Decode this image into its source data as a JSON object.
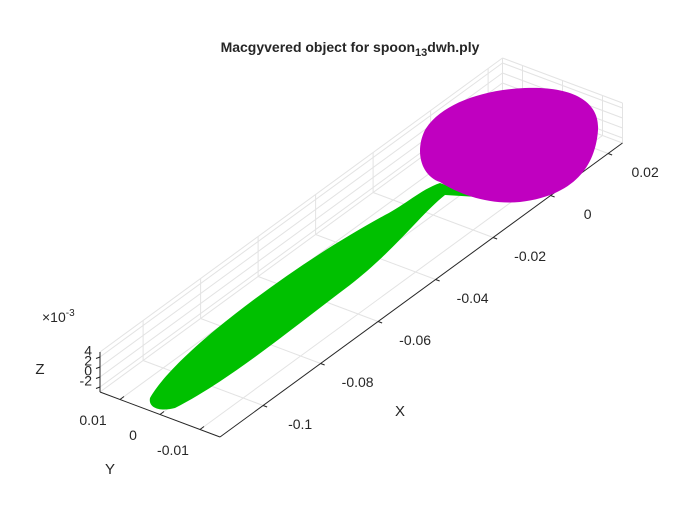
{
  "chart_data": {
    "type": "scatter3",
    "title": [
      "Macgyvered object for spoon",
      "13",
      "dwh.ply"
    ],
    "xlabel": "X",
    "ylabel": "Y",
    "zlabel": "Z",
    "z_exponent": [
      "×10",
      "-3"
    ],
    "colors": [
      "#00c000",
      "#c000c0"
    ],
    "xlim": [
      -0.115,
      0.025
    ],
    "ylim": [
      -0.015,
      0.015
    ],
    "zlim": [
      -0.003,
      0.005
    ],
    "xticks": [
      -0.1,
      -0.08,
      -0.06,
      -0.04,
      -0.02,
      0,
      0.02
    ],
    "yticks": [
      -0.01,
      0,
      0.01
    ],
    "zticks": [
      {
        "value": -0.002,
        "label": "-2"
      },
      {
        "value": 0,
        "label": "0"
      },
      {
        "value": 0.002,
        "label": "2"
      },
      {
        "value": 0.004,
        "label": "4"
      }
    ],
    "grid": true
  }
}
